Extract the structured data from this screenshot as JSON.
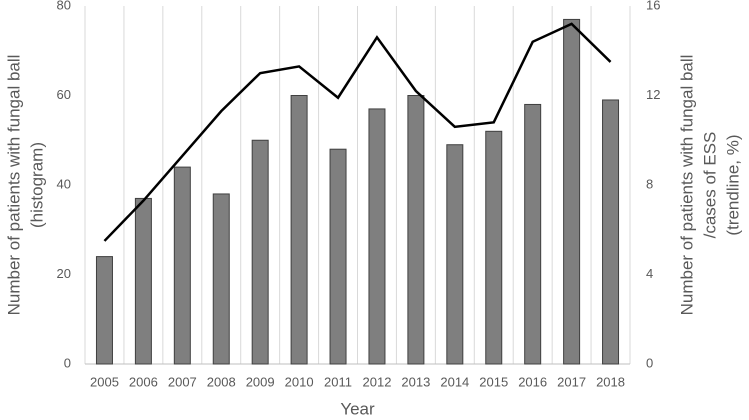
{
  "chart_data": {
    "type": "bar",
    "x_label": "Year",
    "y_label": [
      "Number of patients with fungal ball",
      "(histogram)"
    ],
    "y2_label": [
      "Number of patients with fungal ball",
      "/cases of ESS",
      "(trendline, %)"
    ],
    "categories": [
      "2005",
      "2006",
      "2007",
      "2008",
      "2009",
      "2010",
      "2011",
      "2012",
      "2013",
      "2014",
      "2015",
      "2016",
      "2017",
      "2018"
    ],
    "series": [
      {
        "type": "bar",
        "color": "#7f7f7f",
        "values": [
          24,
          37,
          44,
          38,
          50,
          60,
          48,
          57,
          60,
          49,
          52,
          58,
          77,
          59
        ]
      },
      {
        "type": "line",
        "color": "#000000",
        "axis": "y2",
        "values": [
          5.5,
          7.3,
          9.3,
          11.3,
          13,
          13.3,
          11.9,
          14.6,
          12.2,
          10.6,
          10.8,
          14.4,
          15.2,
          13.5
        ]
      }
    ],
    "ylim": [
      0,
      80
    ],
    "yticks": [
      0,
      20,
      40,
      60,
      80
    ],
    "y2lim": [
      0,
      16
    ],
    "y2ticks": [
      0,
      4,
      8,
      12,
      16
    ],
    "grid": "vertical"
  }
}
